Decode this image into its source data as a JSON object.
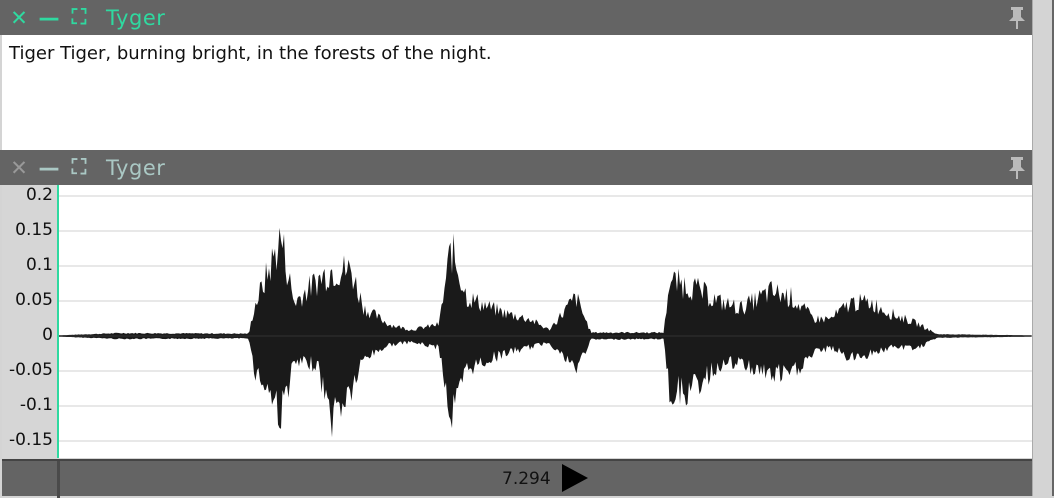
{
  "top_panel": {
    "title": "Tyger",
    "text": "Tiger Tiger, burning bright, in the forests of the night."
  },
  "wave_panel": {
    "title": "Tyger"
  },
  "transport": {
    "time": "7.294"
  },
  "icons": {
    "close": "close-icon",
    "minimize": "minimize-icon",
    "maximize": "maximize-icon",
    "pin": "pin-icon",
    "play": "play-icon"
  },
  "colors": {
    "accent": "#2fd9a0",
    "header": "#646464",
    "waveform": "#1a1a1a"
  },
  "chart_data": {
    "type": "area",
    "ylim": [
      -0.175,
      0.215
    ],
    "yticks": [
      "0.2",
      "0.15",
      "0.1",
      "0.05",
      "0",
      "-0.05",
      "-0.1",
      "-0.15"
    ],
    "ytick_values": [
      0.2,
      0.15,
      0.1,
      0.05,
      0,
      -0.05,
      -0.1,
      -0.15
    ],
    "grid": true,
    "envelope": [
      [
        0,
        0,
        0
      ],
      [
        60,
        0.004,
        -0.004
      ],
      [
        190,
        0.003,
        -0.003
      ],
      [
        195,
        0.05,
        -0.06
      ],
      [
        210,
        0.12,
        -0.1
      ],
      [
        222,
        0.18,
        -0.14
      ],
      [
        235,
        0.06,
        -0.05
      ],
      [
        258,
        0.1,
        -0.05
      ],
      [
        272,
        0.12,
        -0.15
      ],
      [
        292,
        0.12,
        -0.1
      ],
      [
        305,
        0.05,
        -0.04
      ],
      [
        330,
        0.02,
        -0.015
      ],
      [
        352,
        0.01,
        -0.01
      ],
      [
        380,
        0.02,
        -0.02
      ],
      [
        392,
        0.16,
        -0.15
      ],
      [
        408,
        0.07,
        -0.06
      ],
      [
        432,
        0.05,
        -0.04
      ],
      [
        447,
        0.04,
        -0.03
      ],
      [
        470,
        0.03,
        -0.02
      ],
      [
        490,
        0.01,
        -0.01
      ],
      [
        517,
        0.07,
        -0.06
      ],
      [
        532,
        0.005,
        -0.005
      ],
      [
        605,
        0.005,
        -0.004
      ],
      [
        610,
        0.1,
        -0.1
      ],
      [
        632,
        0.09,
        -0.1
      ],
      [
        662,
        0.06,
        -0.05
      ],
      [
        682,
        0.05,
        -0.05
      ],
      [
        712,
        0.08,
        -0.07
      ],
      [
        732,
        0.07,
        -0.07
      ],
      [
        755,
        0.03,
        -0.03
      ],
      [
        772,
        0.03,
        -0.02
      ],
      [
        792,
        0.06,
        -0.04
      ],
      [
        812,
        0.06,
        -0.03
      ],
      [
        832,
        0.04,
        -0.02
      ],
      [
        860,
        0.02,
        -0.02
      ],
      [
        878,
        0.002,
        -0.002
      ],
      [
        974,
        0,
        0
      ]
    ]
  }
}
